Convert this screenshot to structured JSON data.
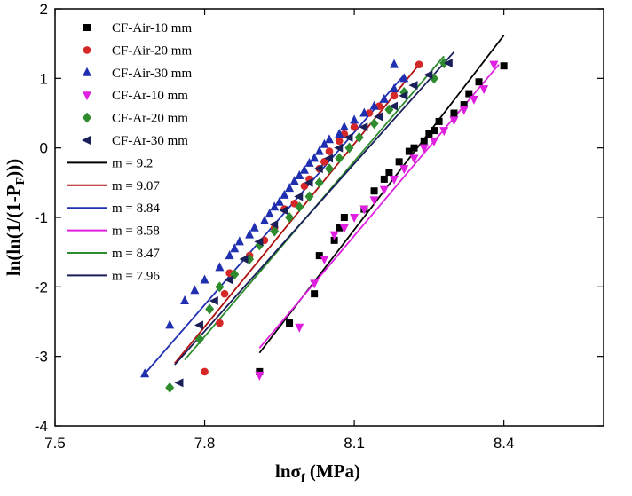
{
  "chart_data": {
    "type": "scatter",
    "xlabel": "lnσ",
    "xlabel_sub": "f",
    "xlabel_unit": " (MPa)",
    "ylabel": "ln(ln(1/(1-P",
    "ylabel_sub": "F",
    "ylabel_end": ")))",
    "xlim": [
      7.5,
      8.6
    ],
    "ylim": [
      -4,
      2
    ],
    "x_ticks": [
      7.5,
      7.8,
      8.1,
      8.4
    ],
    "x_tick_labels": [
      "7.5",
      "7.8",
      "8.1",
      "8.4"
    ],
    "y_ticks": [
      -4,
      -3,
      -2,
      -1,
      0,
      1,
      2
    ],
    "y_tick_labels": [
      "-4",
      "-3",
      "-2",
      "-1",
      "0",
      "1",
      "2"
    ],
    "legend_position": "top-left",
    "series": [
      {
        "name": "CF-Air-10 mm",
        "marker": "square",
        "color": "#000000",
        "points": [
          [
            7.91,
            -3.22
          ],
          [
            7.97,
            -2.52
          ],
          [
            8.02,
            -2.1
          ],
          [
            8.03,
            -1.55
          ],
          [
            8.06,
            -1.33
          ],
          [
            8.07,
            -1.15
          ],
          [
            8.08,
            -1.0
          ],
          [
            8.12,
            -0.88
          ],
          [
            8.14,
            -0.62
          ],
          [
            8.16,
            -0.45
          ],
          [
            8.17,
            -0.35
          ],
          [
            8.19,
            -0.2
          ],
          [
            8.21,
            -0.05
          ],
          [
            8.22,
            0.0
          ],
          [
            8.24,
            0.1
          ],
          [
            8.25,
            0.2
          ],
          [
            8.26,
            0.25
          ],
          [
            8.27,
            0.38
          ],
          [
            8.3,
            0.5
          ],
          [
            8.32,
            0.62
          ],
          [
            8.33,
            0.78
          ],
          [
            8.35,
            0.95
          ],
          [
            8.4,
            1.18
          ]
        ]
      },
      {
        "name": "CF-Air-20 mm",
        "marker": "circle",
        "color": "#d62728",
        "points": [
          [
            7.8,
            -3.22
          ],
          [
            7.83,
            -2.52
          ],
          [
            7.84,
            -2.1
          ],
          [
            7.85,
            -1.8
          ],
          [
            7.89,
            -1.55
          ],
          [
            7.92,
            -1.33
          ],
          [
            7.94,
            -1.15
          ],
          [
            7.96,
            -0.88
          ],
          [
            7.98,
            -0.8
          ],
          [
            8.0,
            -0.55
          ],
          [
            8.01,
            -0.45
          ],
          [
            8.03,
            -0.3
          ],
          [
            8.04,
            -0.2
          ],
          [
            8.05,
            -0.05
          ],
          [
            8.07,
            0.1
          ],
          [
            8.08,
            0.2
          ],
          [
            8.1,
            0.3
          ],
          [
            8.13,
            0.5
          ],
          [
            8.15,
            0.6
          ],
          [
            8.18,
            0.75
          ],
          [
            8.23,
            1.2
          ]
        ]
      },
      {
        "name": "CF-Air-30 mm",
        "marker": "triangle-up",
        "color": "#1f2fb0",
        "points": [
          [
            7.68,
            -3.25
          ],
          [
            7.73,
            -2.55
          ],
          [
            7.76,
            -2.2
          ],
          [
            7.78,
            -2.05
          ],
          [
            7.8,
            -1.9
          ],
          [
            7.83,
            -1.72
          ],
          [
            7.85,
            -1.55
          ],
          [
            7.86,
            -1.45
          ],
          [
            7.87,
            -1.35
          ],
          [
            7.89,
            -1.25
          ],
          [
            7.9,
            -1.15
          ],
          [
            7.92,
            -1.05
          ],
          [
            7.93,
            -0.95
          ],
          [
            7.94,
            -0.85
          ],
          [
            7.95,
            -0.78
          ],
          [
            7.96,
            -0.68
          ],
          [
            7.97,
            -0.58
          ],
          [
            7.98,
            -0.48
          ],
          [
            7.99,
            -0.4
          ],
          [
            8.0,
            -0.32
          ],
          [
            8.01,
            -0.22
          ],
          [
            8.02,
            -0.15
          ],
          [
            8.03,
            -0.05
          ],
          [
            8.04,
            0.05
          ],
          [
            8.05,
            0.12
          ],
          [
            8.07,
            0.2
          ],
          [
            8.08,
            0.3
          ],
          [
            8.1,
            0.4
          ],
          [
            8.12,
            0.5
          ],
          [
            8.14,
            0.6
          ],
          [
            8.16,
            0.7
          ],
          [
            8.18,
            0.85
          ],
          [
            8.2,
            1.0
          ],
          [
            8.18,
            1.2
          ]
        ]
      },
      {
        "name": "CF-Ar-10 mm",
        "marker": "triangle-down",
        "color": "#e020e0",
        "points": [
          [
            7.91,
            -3.27
          ],
          [
            7.99,
            -2.58
          ],
          [
            8.02,
            -1.95
          ],
          [
            8.04,
            -1.6
          ],
          [
            8.06,
            -1.25
          ],
          [
            8.08,
            -1.15
          ],
          [
            8.1,
            -1.0
          ],
          [
            8.12,
            -0.88
          ],
          [
            8.14,
            -0.75
          ],
          [
            8.16,
            -0.6
          ],
          [
            8.18,
            -0.45
          ],
          [
            8.2,
            -0.3
          ],
          [
            8.22,
            -0.15
          ],
          [
            8.24,
            0.0
          ],
          [
            8.26,
            0.1
          ],
          [
            8.28,
            0.25
          ],
          [
            8.3,
            0.4
          ],
          [
            8.32,
            0.55
          ],
          [
            8.34,
            0.7
          ],
          [
            8.36,
            0.85
          ],
          [
            8.38,
            1.2
          ]
        ]
      },
      {
        "name": "CF-Ar-20 mm",
        "marker": "diamond",
        "color": "#2e8b2e",
        "points": [
          [
            7.73,
            -3.45
          ],
          [
            7.79,
            -2.75
          ],
          [
            7.81,
            -2.32
          ],
          [
            7.83,
            -2.0
          ],
          [
            7.86,
            -1.82
          ],
          [
            7.89,
            -1.6
          ],
          [
            7.91,
            -1.4
          ],
          [
            7.94,
            -1.2
          ],
          [
            7.97,
            -1.0
          ],
          [
            7.99,
            -0.85
          ],
          [
            8.01,
            -0.7
          ],
          [
            8.03,
            -0.5
          ],
          [
            8.05,
            -0.3
          ],
          [
            8.07,
            -0.15
          ],
          [
            8.09,
            0.0
          ],
          [
            8.11,
            0.15
          ],
          [
            8.14,
            0.35
          ],
          [
            8.17,
            0.55
          ],
          [
            8.2,
            0.8
          ],
          [
            8.26,
            1.0
          ],
          [
            8.28,
            1.22
          ]
        ]
      },
      {
        "name": "CF-Ar-30 mm",
        "marker": "triangle-left",
        "color": "#1a1f5a",
        "points": [
          [
            7.75,
            -3.38
          ],
          [
            7.79,
            -2.55
          ],
          [
            7.82,
            -2.2
          ],
          [
            7.85,
            -1.9
          ],
          [
            7.88,
            -1.6
          ],
          [
            7.91,
            -1.35
          ],
          [
            7.94,
            -1.1
          ],
          [
            7.96,
            -0.9
          ],
          [
            7.99,
            -0.7
          ],
          [
            8.01,
            -0.5
          ],
          [
            8.03,
            -0.3
          ],
          [
            8.05,
            -0.15
          ],
          [
            8.07,
            0.0
          ],
          [
            8.09,
            0.15
          ],
          [
            8.12,
            0.3
          ],
          [
            8.15,
            0.45
          ],
          [
            8.18,
            0.6
          ],
          [
            8.2,
            0.75
          ],
          [
            8.22,
            0.9
          ],
          [
            8.25,
            1.05
          ],
          [
            8.29,
            1.22
          ]
        ]
      }
    ],
    "fits": [
      {
        "name": "m = 9.2",
        "color": "#000000",
        "x": [
          7.91,
          8.4
        ],
        "y": [
          -2.95,
          1.62
        ]
      },
      {
        "name": "m = 9.07",
        "color": "#b01010",
        "x": [
          7.74,
          8.23
        ],
        "y": [
          -3.1,
          1.2
        ]
      },
      {
        "name": "m = 8.84",
        "color": "#1f2fb0",
        "x": [
          7.68,
          8.2
        ],
        "y": [
          -3.25,
          1.05
        ]
      },
      {
        "name": "m = 8.58",
        "color": "#e020e0",
        "x": [
          7.91,
          8.39
        ],
        "y": [
          -2.88,
          1.2
        ]
      },
      {
        "name": "m = 8.47",
        "color": "#2e8b2e",
        "x": [
          7.76,
          8.28
        ],
        "y": [
          -3.05,
          1.32
        ]
      },
      {
        "name": "m = 7.96",
        "color": "#1a1f5a",
        "x": [
          7.74,
          8.3
        ],
        "y": [
          -3.12,
          1.38
        ]
      }
    ]
  }
}
